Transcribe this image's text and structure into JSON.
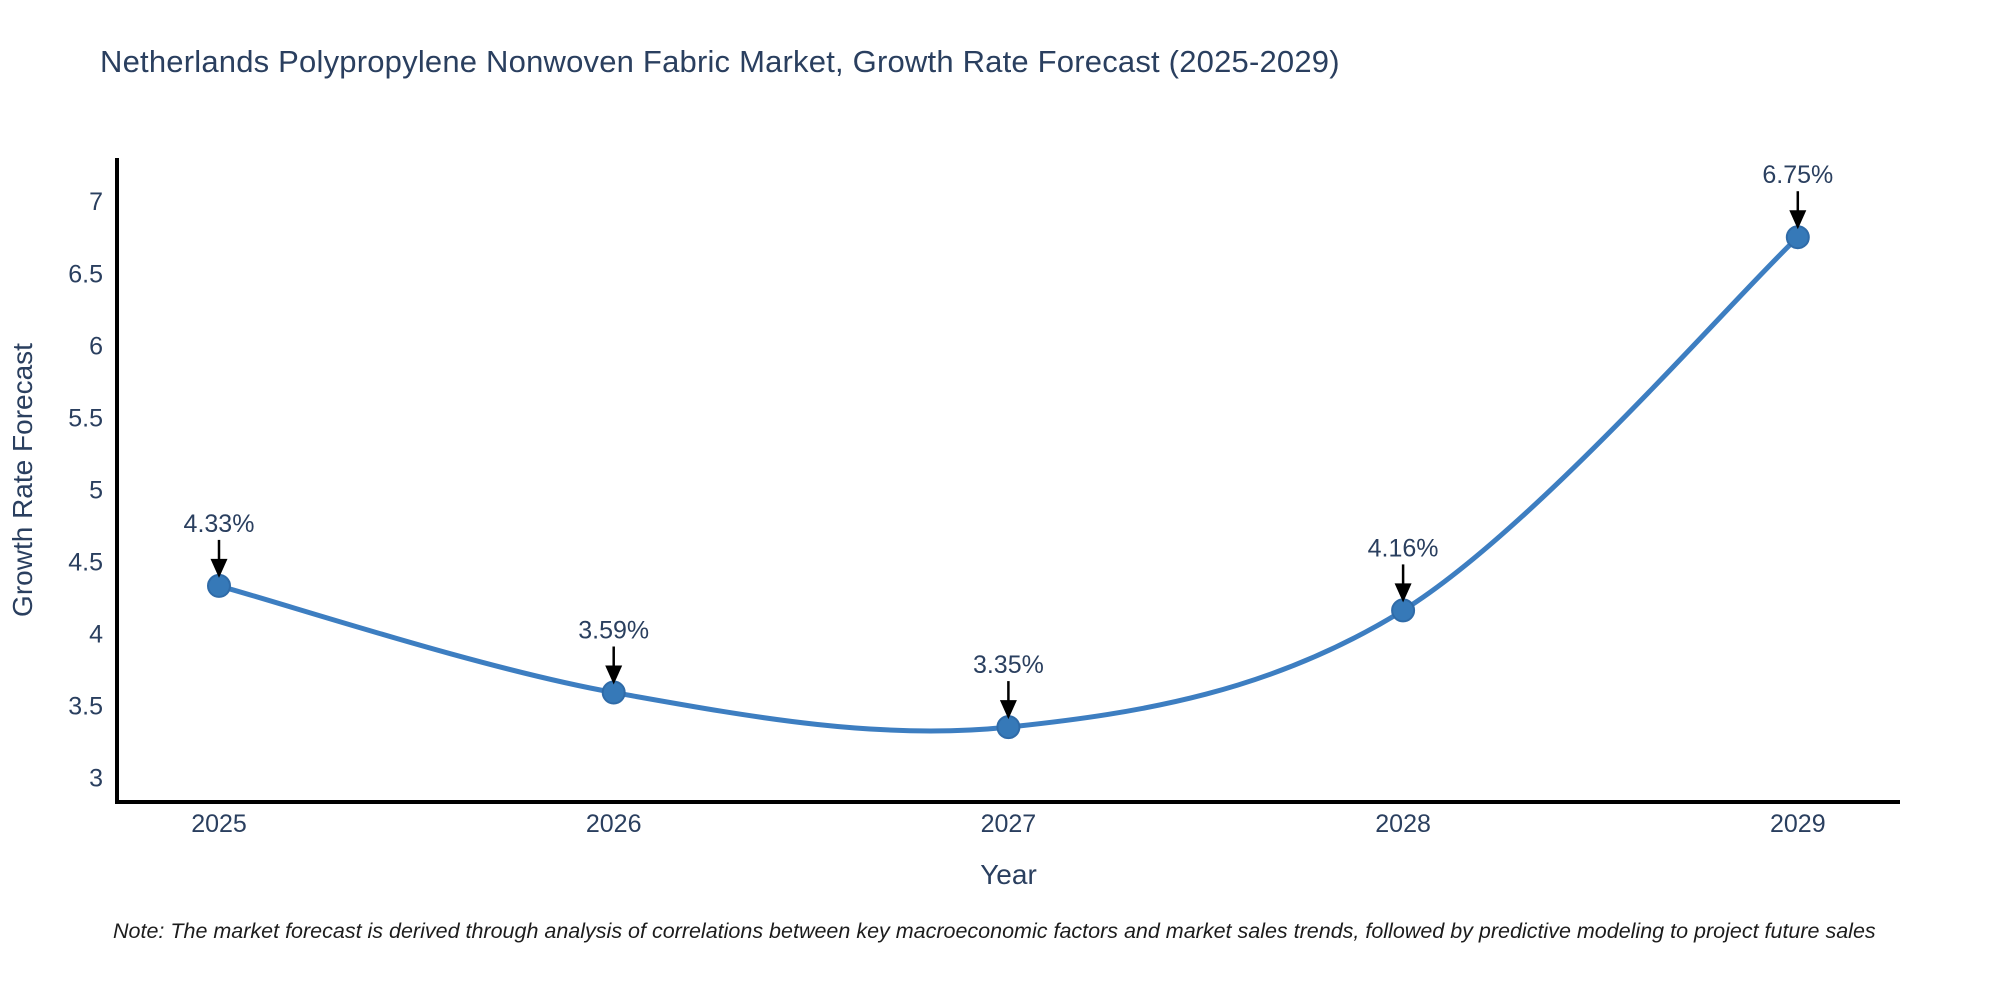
{
  "title": "Netherlands Polypropylene Nonwoven Fabric Market, Growth Rate Forecast (2025-2029)",
  "note": "Note: The market forecast is derived through analysis of correlations between key macroeconomic factors and market sales trends, followed by predictive modeling to project future sales",
  "chart_data": {
    "type": "line",
    "title": "Netherlands Polypropylene Nonwoven Fabric Market, Growth Rate Forecast (2025-2029)",
    "x": [
      2025,
      2026,
      2027,
      2028,
      2029
    ],
    "xtick_labels": [
      "2025",
      "2026",
      "2027",
      "2028",
      "2029"
    ],
    "series": [
      {
        "name": "Growth Rate Forecast",
        "values": [
          4.33,
          3.59,
          3.35,
          4.16,
          6.75
        ]
      }
    ],
    "point_labels": [
      "4.33%",
      "3.59%",
      "3.35%",
      "4.16%",
      "6.75%"
    ],
    "xlabel": "Year",
    "ylabel": "Growth Rate Forecast",
    "ylim": [
      2.83,
      7.3
    ],
    "yticks": [
      3,
      3.5,
      4,
      4.5,
      5,
      5.5,
      6,
      6.5,
      7
    ],
    "ytick_labels": [
      "3",
      "3.5",
      "4",
      "4.5",
      "5",
      "5.5",
      "6",
      "6.5",
      "7"
    ],
    "line_shape": "spline",
    "grid": false,
    "legend": "none",
    "colors": {
      "line": "#3d7ec1",
      "marker_fill": "#3679b8",
      "marker_edge": "#2f6ba8",
      "axis": "#000000",
      "text": "#2a3f5f",
      "annotation_text": "#2a3f5f",
      "annotation_arrow": "#000000",
      "note_text": "#1c1c1c"
    }
  }
}
